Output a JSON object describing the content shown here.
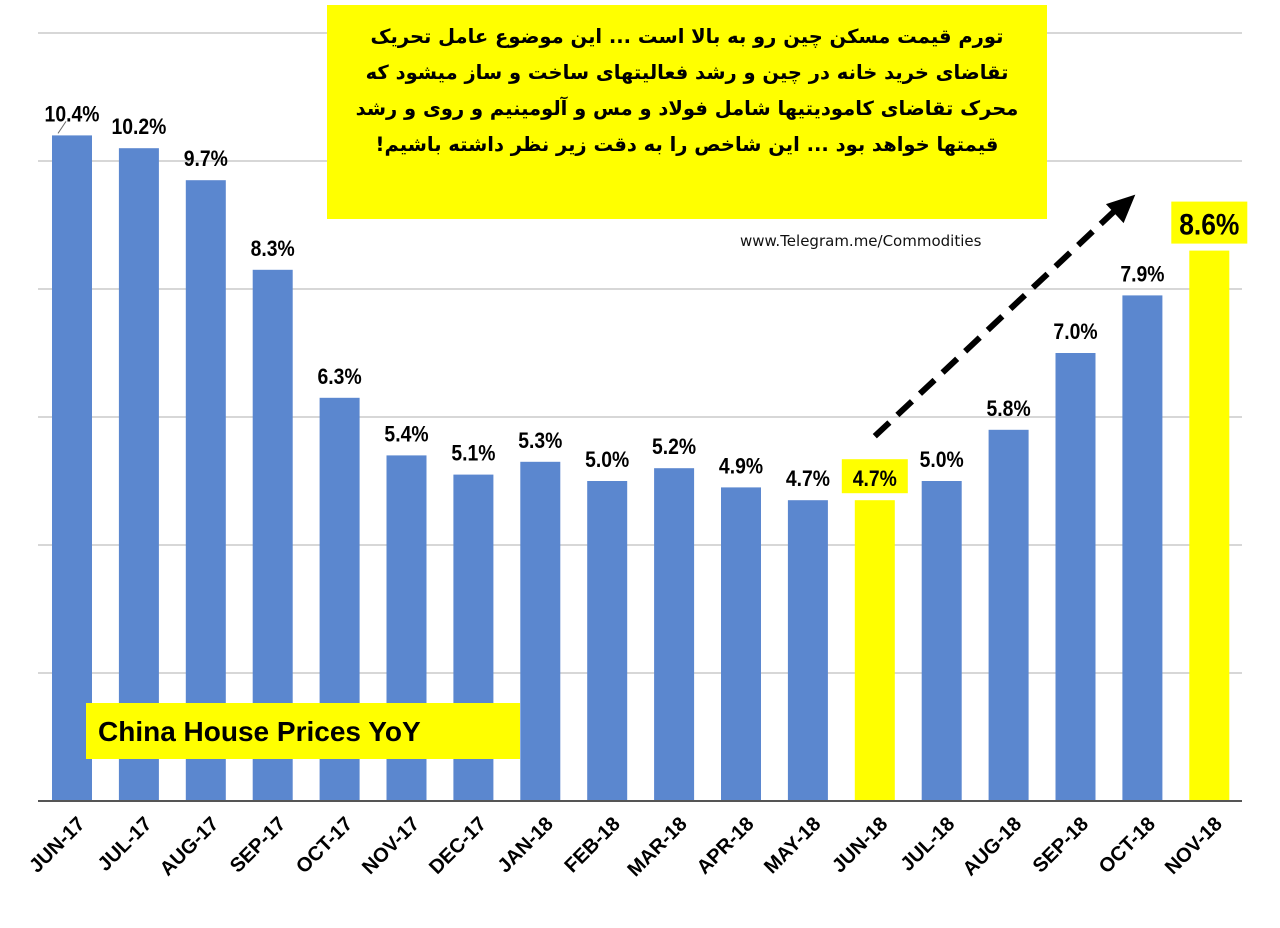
{
  "annotation": {
    "lines": [
      "تورم قیمت مسکن چین رو به بالا است ... این موضوع عامل تحریک",
      "تقاضای خرید خانه در چین و رشد فعالیتهای ساخت و ساز میشود که",
      "محرک تقاضای کامودیتیها شامل فولاد و مس و آلومینیم و روی و رشد",
      "قیمتها خواهد بود ... این شاخص را به دقت زیر نظر داشته باشیم!"
    ],
    "source": "www.Telegram.me/Commodities"
  },
  "chart_data": {
    "type": "bar",
    "title": "China House Prices YoY",
    "categories": [
      "JUN-17",
      "JUL-17",
      "AUG-17",
      "SEP-17",
      "OCT-17",
      "NOV-17",
      "DEC-17",
      "JAN-18",
      "FEB-18",
      "MAR-18",
      "APR-18",
      "MAY-18",
      "JUN-18",
      "JUL-18",
      "AUG-18",
      "SEP-18",
      "OCT-18",
      "NOV-18"
    ],
    "values": [
      10.4,
      10.2,
      9.7,
      8.3,
      6.3,
      5.4,
      5.1,
      5.3,
      5.0,
      5.2,
      4.9,
      4.7,
      4.7,
      5.0,
      5.8,
      7.0,
      7.9,
      8.6
    ],
    "labels": [
      "10.4%",
      "10.2%",
      "9.7%",
      "8.3%",
      "6.3%",
      "5.4%",
      "5.1%",
      "5.3%",
      "5.0%",
      "5.2%",
      "4.9%",
      "4.7%",
      "4.7%",
      "5.0%",
      "5.8%",
      "7.0%",
      "7.9%",
      "8.6%"
    ],
    "highlight_indices": [
      12,
      17
    ],
    "ylim": [
      0,
      12
    ],
    "y_gridlines": [
      2,
      4,
      6,
      8,
      10,
      12
    ],
    "y_tick_labels_shown": false,
    "grid": true,
    "colors": {
      "bar": "#5b87cf",
      "highlight": "#ffff00",
      "grid": "#bfbfbf",
      "axis": "#555555"
    },
    "trend_arrow": {
      "from_category": "JUN-18",
      "to_category": "NOV-18",
      "style": "dashed"
    }
  }
}
